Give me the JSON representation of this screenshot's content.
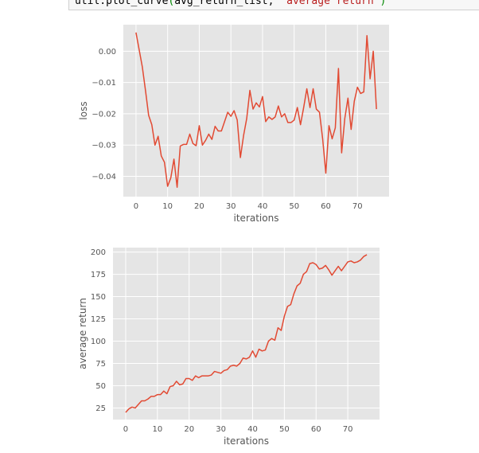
{
  "code": {
    "prefix": "util.plot_curve",
    "open_paren": "(",
    "arg": "avg_return_list, ",
    "string": "'average return'",
    "close_paren": ")"
  },
  "colors": {
    "line": "#e24a33",
    "panel": "#e5e5e5",
    "grid": "#ffffff",
    "tick_text": "#555555"
  },
  "chart_data": [
    {
      "type": "line",
      "title": "",
      "xlabel": "iterations",
      "ylabel": "loss",
      "xlim": [
        -4,
        80
      ],
      "ylim": [
        -0.0465,
        0.0085
      ],
      "xticks": [
        0,
        10,
        20,
        30,
        40,
        50,
        60,
        70
      ],
      "xtick_labels": [
        "0",
        "10",
        "20",
        "30",
        "40",
        "50",
        "60",
        "70"
      ],
      "yticks": [
        0.0,
        -0.01,
        -0.02,
        -0.03,
        -0.04
      ],
      "ytick_labels": [
        "0.00",
        "−0.01",
        "−0.02",
        "−0.03",
        "−0.04"
      ],
      "grid": true,
      "series": [
        {
          "x": [
            0,
            1,
            2,
            3,
            4,
            5,
            6,
            7,
            8,
            9,
            10,
            11,
            12,
            13,
            14,
            15,
            16,
            17,
            18,
            19,
            20,
            21,
            22,
            23,
            24,
            25,
            26,
            27,
            28,
            29,
            30,
            31,
            32,
            33,
            34,
            35,
            36,
            37,
            38,
            39,
            40,
            41,
            42,
            43,
            44,
            45,
            46,
            47,
            48,
            49,
            50,
            51,
            52,
            53,
            54,
            55,
            56,
            57,
            58,
            59,
            60,
            61,
            62,
            63,
            64,
            65,
            66,
            67,
            68,
            69,
            70,
            71,
            72,
            73,
            74,
            75,
            76
          ],
          "y": [
            0.006,
            0.0005,
            -0.005,
            -0.0125,
            -0.0205,
            -0.0235,
            -0.03,
            -0.0272,
            -0.0335,
            -0.0355,
            -0.0432,
            -0.0405,
            -0.0345,
            -0.0435,
            -0.0303,
            -0.0298,
            -0.0298,
            -0.0265,
            -0.0295,
            -0.0302,
            -0.0238,
            -0.03,
            -0.0285,
            -0.0265,
            -0.0282,
            -0.024,
            -0.0255,
            -0.0255,
            -0.0225,
            -0.0195,
            -0.0208,
            -0.019,
            -0.022,
            -0.034,
            -0.027,
            -0.0215,
            -0.0125,
            -0.0185,
            -0.0165,
            -0.0178,
            -0.0145,
            -0.0225,
            -0.021,
            -0.0218,
            -0.021,
            -0.0175,
            -0.021,
            -0.02,
            -0.0228,
            -0.0228,
            -0.022,
            -0.018,
            -0.0235,
            -0.018,
            -0.012,
            -0.018,
            -0.012,
            -0.0185,
            -0.0195,
            -0.028,
            -0.039,
            -0.0238,
            -0.028,
            -0.0245,
            -0.0055,
            -0.0325,
            -0.0215,
            -0.015,
            -0.025,
            -0.016,
            -0.0115,
            -0.0135,
            -0.013,
            0.005,
            -0.0088,
            0.0,
            -0.0185
          ]
        }
      ]
    },
    {
      "type": "line",
      "title": "",
      "xlabel": "iterations",
      "ylabel": "average return",
      "xlim": [
        -4,
        80
      ],
      "ylim": [
        12,
        205
      ],
      "xticks": [
        0,
        10,
        20,
        30,
        40,
        50,
        60,
        70
      ],
      "xtick_labels": [
        "0",
        "10",
        "20",
        "30",
        "40",
        "50",
        "60",
        "70"
      ],
      "yticks": [
        25,
        50,
        75,
        100,
        125,
        150,
        175,
        200
      ],
      "ytick_labels": [
        "25",
        "50",
        "75",
        "100",
        "125",
        "150",
        "175",
        "200"
      ],
      "grid": true,
      "series": [
        {
          "x": [
            0,
            1,
            2,
            3,
            4,
            5,
            6,
            7,
            8,
            9,
            10,
            11,
            12,
            13,
            14,
            15,
            16,
            17,
            18,
            19,
            20,
            21,
            22,
            23,
            24,
            25,
            26,
            27,
            28,
            29,
            30,
            31,
            32,
            33,
            34,
            35,
            36,
            37,
            38,
            39,
            40,
            41,
            42,
            43,
            44,
            45,
            46,
            47,
            48,
            49,
            50,
            51,
            52,
            53,
            54,
            55,
            56,
            57,
            58,
            59,
            60,
            61,
            62,
            63,
            64,
            65,
            66,
            67,
            68,
            69,
            70,
            71,
            72,
            73,
            74,
            75,
            76
          ],
          "y": [
            20,
            24,
            26,
            25,
            29,
            33,
            33,
            35,
            38,
            38,
            40,
            40,
            44,
            41,
            49,
            50,
            55,
            51,
            52,
            58,
            58,
            56,
            61,
            59,
            61,
            61,
            61,
            62,
            66,
            65,
            64,
            67,
            68,
            72,
            73,
            72,
            75,
            81,
            80,
            82,
            89,
            82,
            91,
            89,
            90,
            100,
            103,
            101,
            115,
            112,
            128,
            139,
            141,
            153,
            162,
            165,
            175,
            178,
            187,
            188,
            186,
            181,
            182,
            185,
            180,
            174,
            179,
            184,
            179,
            184,
            189,
            190,
            188,
            189,
            191,
            195,
            197
          ]
        }
      ]
    }
  ]
}
